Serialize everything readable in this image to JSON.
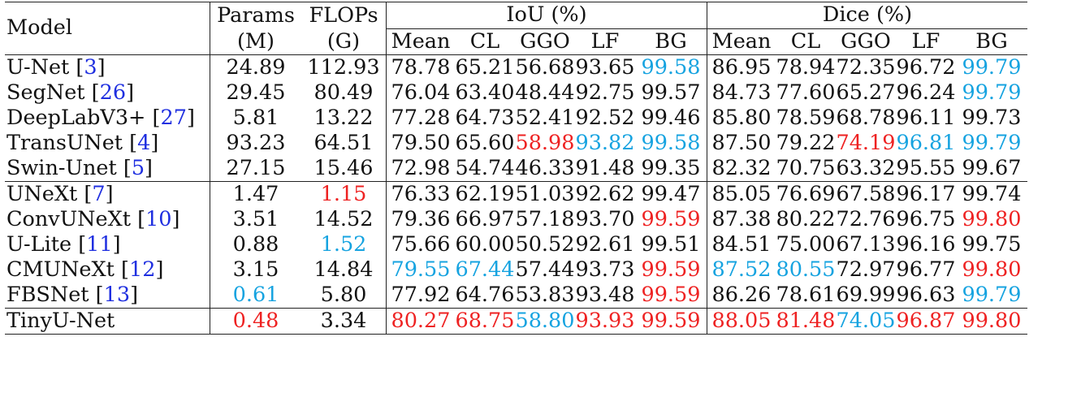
{
  "header": {
    "model": "Model",
    "params": "Params",
    "params_unit": "(M)",
    "flops": "FLOPs",
    "flops_unit": "(G)",
    "iou": "IoU (%)",
    "dice": "Dice (%)",
    "sub": [
      "Mean",
      "CL",
      "GGO",
      "LF",
      "BG"
    ]
  },
  "colors": {
    "best": "#ee2222",
    "second": "#16a3e0",
    "citation": "#1f2fe0"
  },
  "rows": [
    {
      "name": "U-Net",
      "cite": "3",
      "params": "24.89",
      "flops": "112.93",
      "iou": [
        "78.78",
        "65.21",
        "56.68",
        "93.65",
        "99.58"
      ],
      "dice": [
        "86.95",
        "78.94",
        "72.35",
        "96.72",
        "99.79"
      ]
    },
    {
      "name": "SegNet",
      "cite": "26",
      "params": "29.45",
      "flops": "80.49",
      "iou": [
        "76.04",
        "63.40",
        "48.44",
        "92.75",
        "99.57"
      ],
      "dice": [
        "84.73",
        "77.60",
        "65.27",
        "96.24",
        "99.79"
      ]
    },
    {
      "name": "DeepLabV3+",
      "cite": "27",
      "params": "5.81",
      "flops": "13.22",
      "iou": [
        "77.28",
        "64.73",
        "52.41",
        "92.52",
        "99.46"
      ],
      "dice": [
        "85.80",
        "78.59",
        "68.78",
        "96.11",
        "99.73"
      ]
    },
    {
      "name": "TransUNet",
      "cite": "4",
      "params": "93.23",
      "flops": "64.51",
      "iou": [
        "79.50",
        "65.60",
        "58.98",
        "93.82",
        "99.58"
      ],
      "dice": [
        "87.50",
        "79.22",
        "74.19",
        "96.81",
        "99.79"
      ]
    },
    {
      "name": "Swin-Unet",
      "cite": "5",
      "params": "27.15",
      "flops": "15.46",
      "iou": [
        "72.98",
        "54.74",
        "46.33",
        "91.48",
        "99.35"
      ],
      "dice": [
        "82.32",
        "70.75",
        "63.32",
        "95.55",
        "99.67"
      ]
    },
    {
      "name": "UNeXt",
      "cite": "7",
      "params": "1.47",
      "flops": "1.15",
      "iou": [
        "76.33",
        "62.19",
        "51.03",
        "92.62",
        "99.47"
      ],
      "dice": [
        "85.05",
        "76.69",
        "67.58",
        "96.17",
        "99.74"
      ]
    },
    {
      "name": "ConvUNeXt",
      "cite": "10",
      "params": "3.51",
      "flops": "14.52",
      "iou": [
        "79.36",
        "66.97",
        "57.18",
        "93.70",
        "99.59"
      ],
      "dice": [
        "87.38",
        "80.22",
        "72.76",
        "96.75",
        "99.80"
      ]
    },
    {
      "name": "U-Lite",
      "cite": "11",
      "params": "0.88",
      "flops": "1.52",
      "iou": [
        "75.66",
        "60.00",
        "50.52",
        "92.61",
        "99.51"
      ],
      "dice": [
        "84.51",
        "75.00",
        "67.13",
        "96.16",
        "99.75"
      ]
    },
    {
      "name": "CMUNeXt",
      "cite": "12",
      "params": "3.15",
      "flops": "14.84",
      "iou": [
        "79.55",
        "67.44",
        "57.44",
        "93.73",
        "99.59"
      ],
      "dice": [
        "87.52",
        "80.55",
        "72.97",
        "96.77",
        "99.80"
      ]
    },
    {
      "name": "FBSNet",
      "cite": "13",
      "params": "0.61",
      "flops": "5.80",
      "iou": [
        "77.92",
        "64.76",
        "53.83",
        "93.48",
        "99.59"
      ],
      "dice": [
        "86.26",
        "78.61",
        "69.99",
        "96.63",
        "99.79"
      ]
    },
    {
      "name": "TinyU-Net",
      "cite": "",
      "params": "0.48",
      "flops": "3.34",
      "iou": [
        "80.27",
        "68.75",
        "58.80",
        "93.93",
        "99.59"
      ],
      "dice": [
        "88.05",
        "81.48",
        "74.05",
        "96.87",
        "99.80"
      ]
    }
  ]
}
